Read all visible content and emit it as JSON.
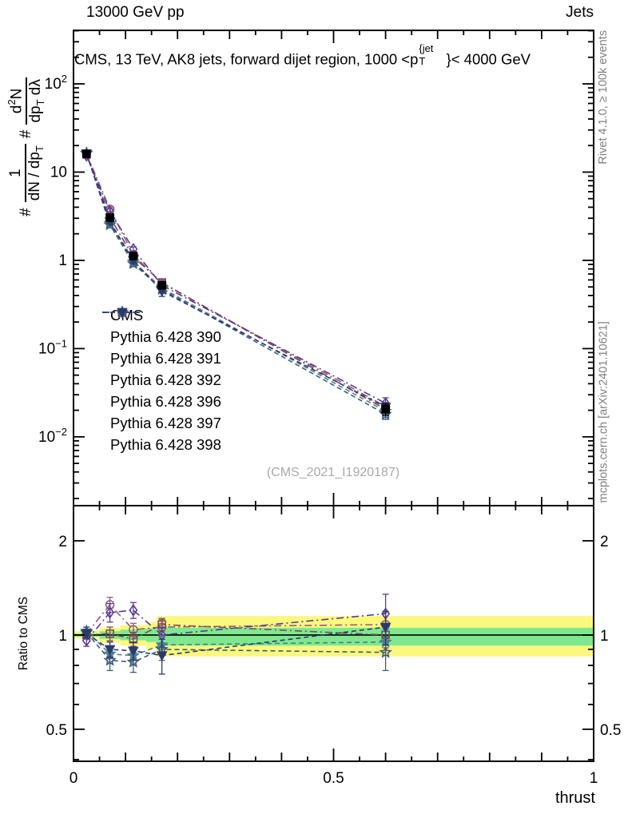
{
  "header": {
    "left": "13000 GeV pp",
    "right": "Jets"
  },
  "title": {
    "part1": "CMS, 13 TeV, AK8 jets, forward dijet region, 1000 <p",
    "sup": "{jet",
    "sub": "T",
    "part2": "}< 4000 GeV"
  },
  "ylabel": {
    "hash1": "#",
    "f1num": "1",
    "f1den": "dN / dp",
    "f1den_sub": "T",
    "hash2": "#",
    "f2num_a": "d",
    "f2num_sup": "2",
    "f2num_b": "N",
    "f2den_a": "dp",
    "f2den_sub": "T",
    "f2den_b": " dλ"
  },
  "right_margin": {
    "top": "Rivet 4.1.0, ≥ 100k events",
    "bottom": "mcplots.cern.ch [arXiv:2401.10621]"
  },
  "watermark": "(CMS_2021_I1920187)",
  "chart_data": {
    "type": "line",
    "xlabel": "thrust",
    "xlim": [
      0,
      1
    ],
    "x": [
      0.025,
      0.07,
      0.115,
      0.17,
      0.6
    ],
    "xticks": {
      "labeled": [
        {
          "v": 0,
          "label": "0"
        },
        {
          "v": 0.5,
          "label": "0.5"
        },
        {
          "v": 1,
          "label": "1"
        }
      ],
      "medium_step": 0.1,
      "minor_step": 0.05
    },
    "top_panel": {
      "ylog": true,
      "ylim": [
        0.00166,
        404
      ],
      "yticks": [
        {
          "v": 100,
          "label": "10",
          "exp": "2"
        },
        {
          "v": 10,
          "label": "10"
        },
        {
          "v": 1,
          "label": "1"
        },
        {
          "v": 0.1,
          "label": "10",
          "exp": "−1"
        },
        {
          "v": 0.01,
          "label": "10",
          "exp": "−2"
        }
      ]
    },
    "cms": {
      "label": "CMS",
      "color": "#000000",
      "marker": "square",
      "filled": true,
      "values": [
        16,
        3.05,
        1.12,
        0.52,
        0.0205
      ],
      "yerr": [
        0.5,
        0.1,
        0.04,
        0.02,
        0.003
      ]
    },
    "series": [
      {
        "name": "Pythia 6.428 390",
        "color": "#8e5f83",
        "marker": "circle",
        "filled": false,
        "linestyle": "dashdot",
        "values": [
          16.2,
          3.81,
          1.16,
          0.551,
          0.0221
        ],
        "ratio": [
          1.01,
          1.25,
          1.04,
          1.06,
          1.08
        ],
        "ratio_err": [
          0.03,
          0.07,
          0.05,
          0.06,
          0.1
        ]
      },
      {
        "name": "Pythia 6.428 391",
        "color": "#7e4a57",
        "marker": "square",
        "filled": false,
        "linestyle": "dashdot",
        "values": [
          16.0,
          3.08,
          1.09,
          0.562,
          0.0205
        ],
        "ratio": [
          1.0,
          1.01,
          0.97,
          1.08,
          1.0
        ],
        "ratio_err": [
          0.03,
          0.05,
          0.05,
          0.05,
          0.09
        ]
      },
      {
        "name": "Pythia 6.428 392",
        "color": "#5a3c92",
        "marker": "diamond",
        "filled": false,
        "linestyle": "dashdot",
        "values": [
          15.4,
          3.6,
          1.34,
          0.52,
          0.024
        ],
        "ratio": [
          0.96,
          1.18,
          1.2,
          1.0,
          1.17
        ],
        "ratio_err": [
          0.04,
          0.08,
          0.07,
          0.06,
          0.18
        ]
      },
      {
        "name": "Pythia 6.428 396",
        "color": "#4e7e8e",
        "marker": "star",
        "filled": true,
        "linestyle": "dashed",
        "values": [
          16.5,
          2.65,
          0.963,
          0.484,
          0.0195
        ],
        "ratio": [
          1.03,
          0.87,
          0.86,
          0.93,
          0.95
        ],
        "ratio_err": [
          0.03,
          0.05,
          0.05,
          0.06,
          0.09
        ]
      },
      {
        "name": "Pythia 6.428 397",
        "color": "#3c5c7c",
        "marker": "star",
        "filled": false,
        "linestyle": "dashed",
        "values": [
          16.3,
          2.53,
          0.918,
          0.468,
          0.018
        ],
        "ratio": [
          1.02,
          0.83,
          0.82,
          0.9,
          0.88
        ],
        "ratio_err": [
          0.04,
          0.06,
          0.06,
          0.07,
          0.11
        ]
      },
      {
        "name": "Pythia 6.428 398",
        "color": "#2c3a6b",
        "marker": "triangle-down",
        "filled": true,
        "linestyle": "dashed",
        "values": [
          16.2,
          2.75,
          0.997,
          0.447,
          0.0217
        ],
        "ratio": [
          1.01,
          0.9,
          0.89,
          0.86,
          1.06
        ],
        "ratio_err": [
          0.03,
          0.05,
          0.06,
          0.11,
          0.13
        ]
      }
    ],
    "ratio_panel": {
      "ylog": true,
      "ylim": [
        0.395,
        2.59
      ],
      "ylabel": "Ratio to CMS",
      "yticks": [
        {
          "v": 2,
          "label": "2"
        },
        {
          "v": 1,
          "label": "1"
        },
        {
          "v": 0.5,
          "label": "0.5"
        }
      ],
      "reference_line": 1,
      "band_colors": {
        "outer": "#fbf87e",
        "inner": "#7fe88f"
      },
      "bands": [
        {
          "x0": 0.0,
          "x1": 0.05,
          "outer": [
            0.975,
            1.03
          ],
          "inner": [
            0.988,
            1.012
          ]
        },
        {
          "x0": 0.05,
          "x1": 0.09,
          "outer": [
            0.945,
            1.055
          ],
          "inner": [
            0.972,
            1.028
          ]
        },
        {
          "x0": 0.09,
          "x1": 0.14,
          "outer": [
            0.925,
            1.075
          ],
          "inner": [
            0.962,
            1.04
          ]
        },
        {
          "x0": 0.14,
          "x1": 0.16,
          "outer": [
            0.9,
            1.1
          ],
          "inner": [
            0.95,
            1.05
          ]
        },
        {
          "x0": 0.16,
          "x1": 1.0,
          "outer": [
            0.855,
            1.15
          ],
          "inner": [
            0.925,
            1.055
          ]
        }
      ]
    }
  }
}
